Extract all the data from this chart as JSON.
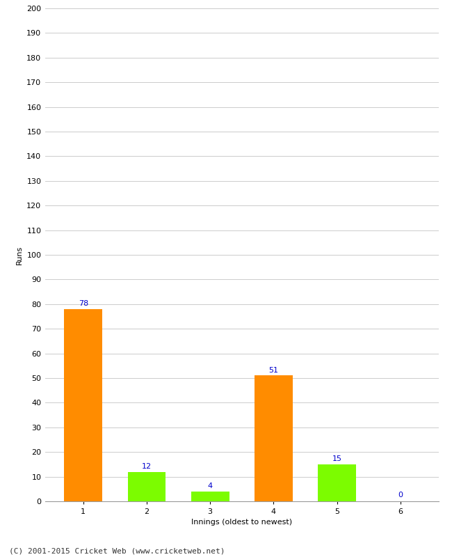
{
  "categories": [
    "1",
    "2",
    "3",
    "4",
    "5",
    "6"
  ],
  "values": [
    78,
    12,
    4,
    51,
    15,
    0
  ],
  "bar_colors": [
    "#ff8c00",
    "#7cfc00",
    "#7cfc00",
    "#ff8c00",
    "#7cfc00",
    "#7cfc00"
  ],
  "xlabel": "Innings (oldest to newest)",
  "ylabel": "Runs",
  "ylim": [
    0,
    200
  ],
  "yticks": [
    0,
    10,
    20,
    30,
    40,
    50,
    60,
    70,
    80,
    90,
    100,
    110,
    120,
    130,
    140,
    150,
    160,
    170,
    180,
    190,
    200
  ],
  "label_color": "#0000cc",
  "label_fontsize": 8,
  "axis_fontsize": 8,
  "ylabel_fontsize": 8,
  "xlabel_fontsize": 8,
  "footer_text": "(C) 2001-2015 Cricket Web (www.cricketweb.net)",
  "footer_fontsize": 8,
  "background_color": "#ffffff",
  "grid_color": "#cccccc",
  "bar_width": 0.6
}
